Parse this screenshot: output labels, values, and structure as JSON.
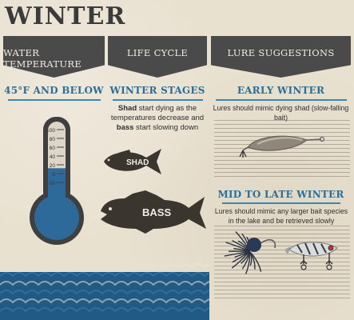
{
  "title": "WINTER",
  "columns": [
    {
      "label": "WATER TEMPERATURE"
    },
    {
      "label": "LIFE CYCLE"
    },
    {
      "label": "LURE SUGGESTIONS"
    }
  ],
  "water_temp": {
    "subheading": "45°F AND BELOW",
    "ticks": [
      "100",
      "80",
      "60",
      "40",
      "20",
      "0",
      "-20"
    ],
    "level_fraction": 0.45
  },
  "life_cycle": {
    "subheading": "WINTER STAGES",
    "text_parts": [
      {
        "text": "Shad",
        "bold": true
      },
      {
        "text": " start dying as the temperatures decrease and ",
        "bold": false
      },
      {
        "text": "bass",
        "bold": true
      },
      {
        "text": " start slowing down",
        "bold": false
      }
    ],
    "fish_labels": {
      "shad": "SHAD",
      "bass": "BASS"
    }
  },
  "lures": {
    "early": {
      "heading": "EARLY WINTER",
      "text": "Lures should mimic dying shad (slow-falling bait)"
    },
    "late": {
      "heading": "MID TO LATE WINTER",
      "text": "Lures should mimic any larger bait species in the lake and be retrieved slowly"
    }
  },
  "colors": {
    "header_bg": "#4a4a4a",
    "accent_blue": "#2a6f9a",
    "water": "#215a85",
    "fish": "#3b3530",
    "paper": "#e9e1d0"
  }
}
